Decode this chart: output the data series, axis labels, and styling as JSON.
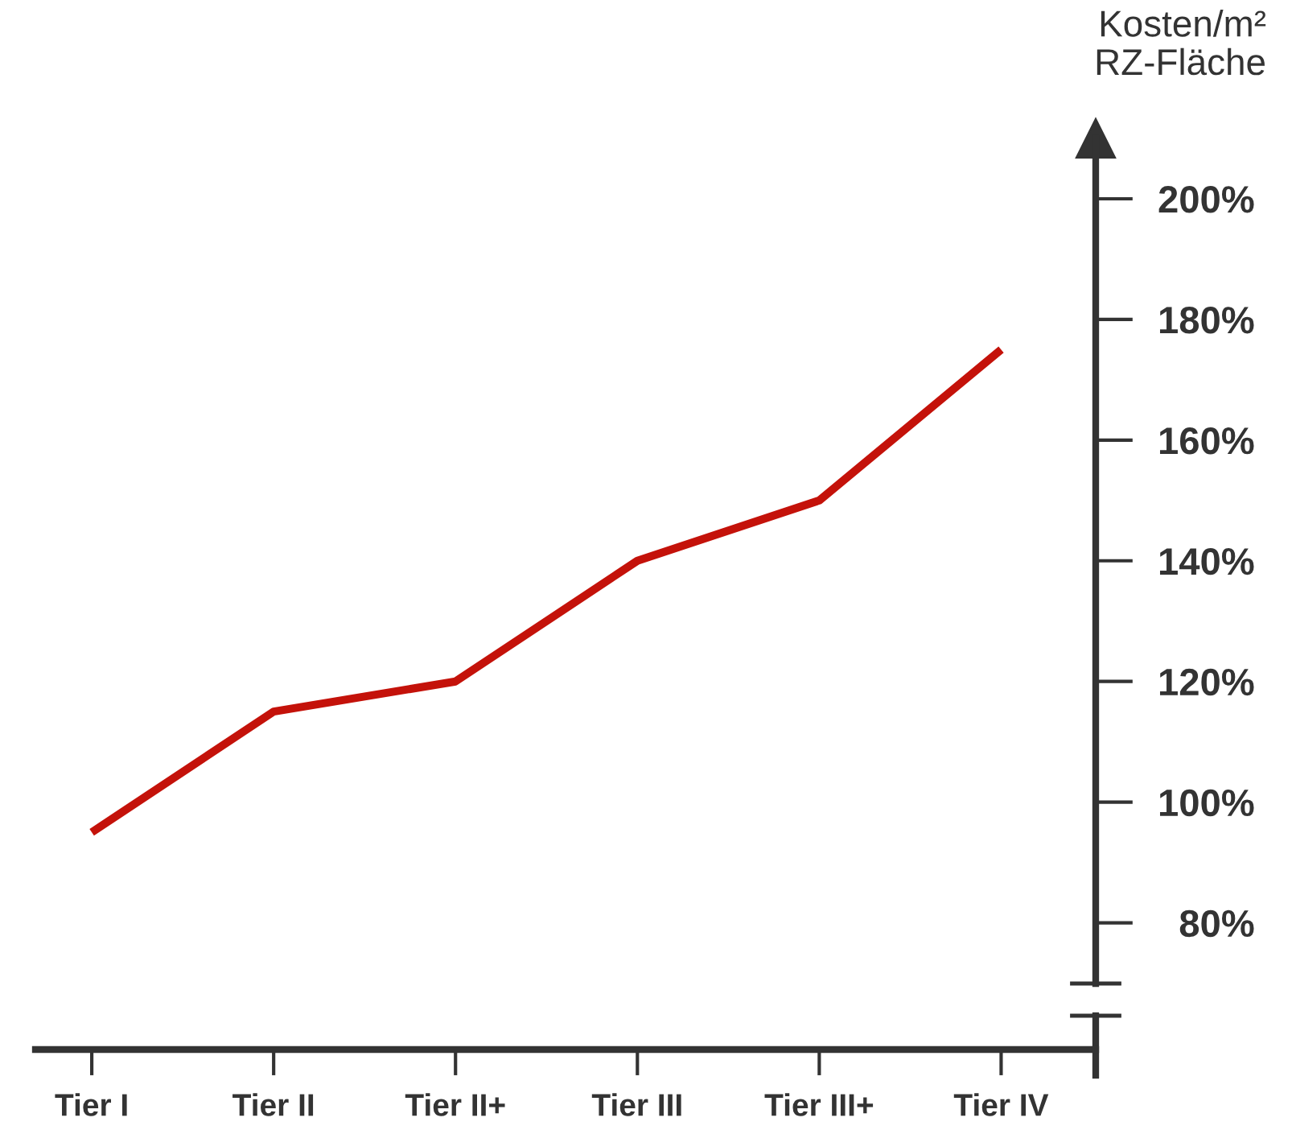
{
  "chart_data": {
    "type": "line",
    "ylabel": "Kosten/m²\nRZ-Fläche",
    "categories": [
      "Tier I",
      "Tier II",
      "Tier II+",
      "Tier III",
      "Tier III+",
      "Tier IV"
    ],
    "values": [
      95,
      115,
      120,
      140,
      150,
      175
    ],
    "color": "#c4120a",
    "ylim": [
      59,
      210
    ],
    "yticks": [
      {
        "value": 80,
        "label": "80%"
      },
      {
        "value": 100,
        "label": "100%"
      },
      {
        "value": 120,
        "label": "120%"
      },
      {
        "value": 140,
        "label": "140%"
      },
      {
        "value": 160,
        "label": "160%"
      },
      {
        "value": 180,
        "label": "180%"
      },
      {
        "value": 200,
        "label": "200%"
      }
    ],
    "grid": false,
    "marker": "none",
    "line_style": "solid"
  }
}
